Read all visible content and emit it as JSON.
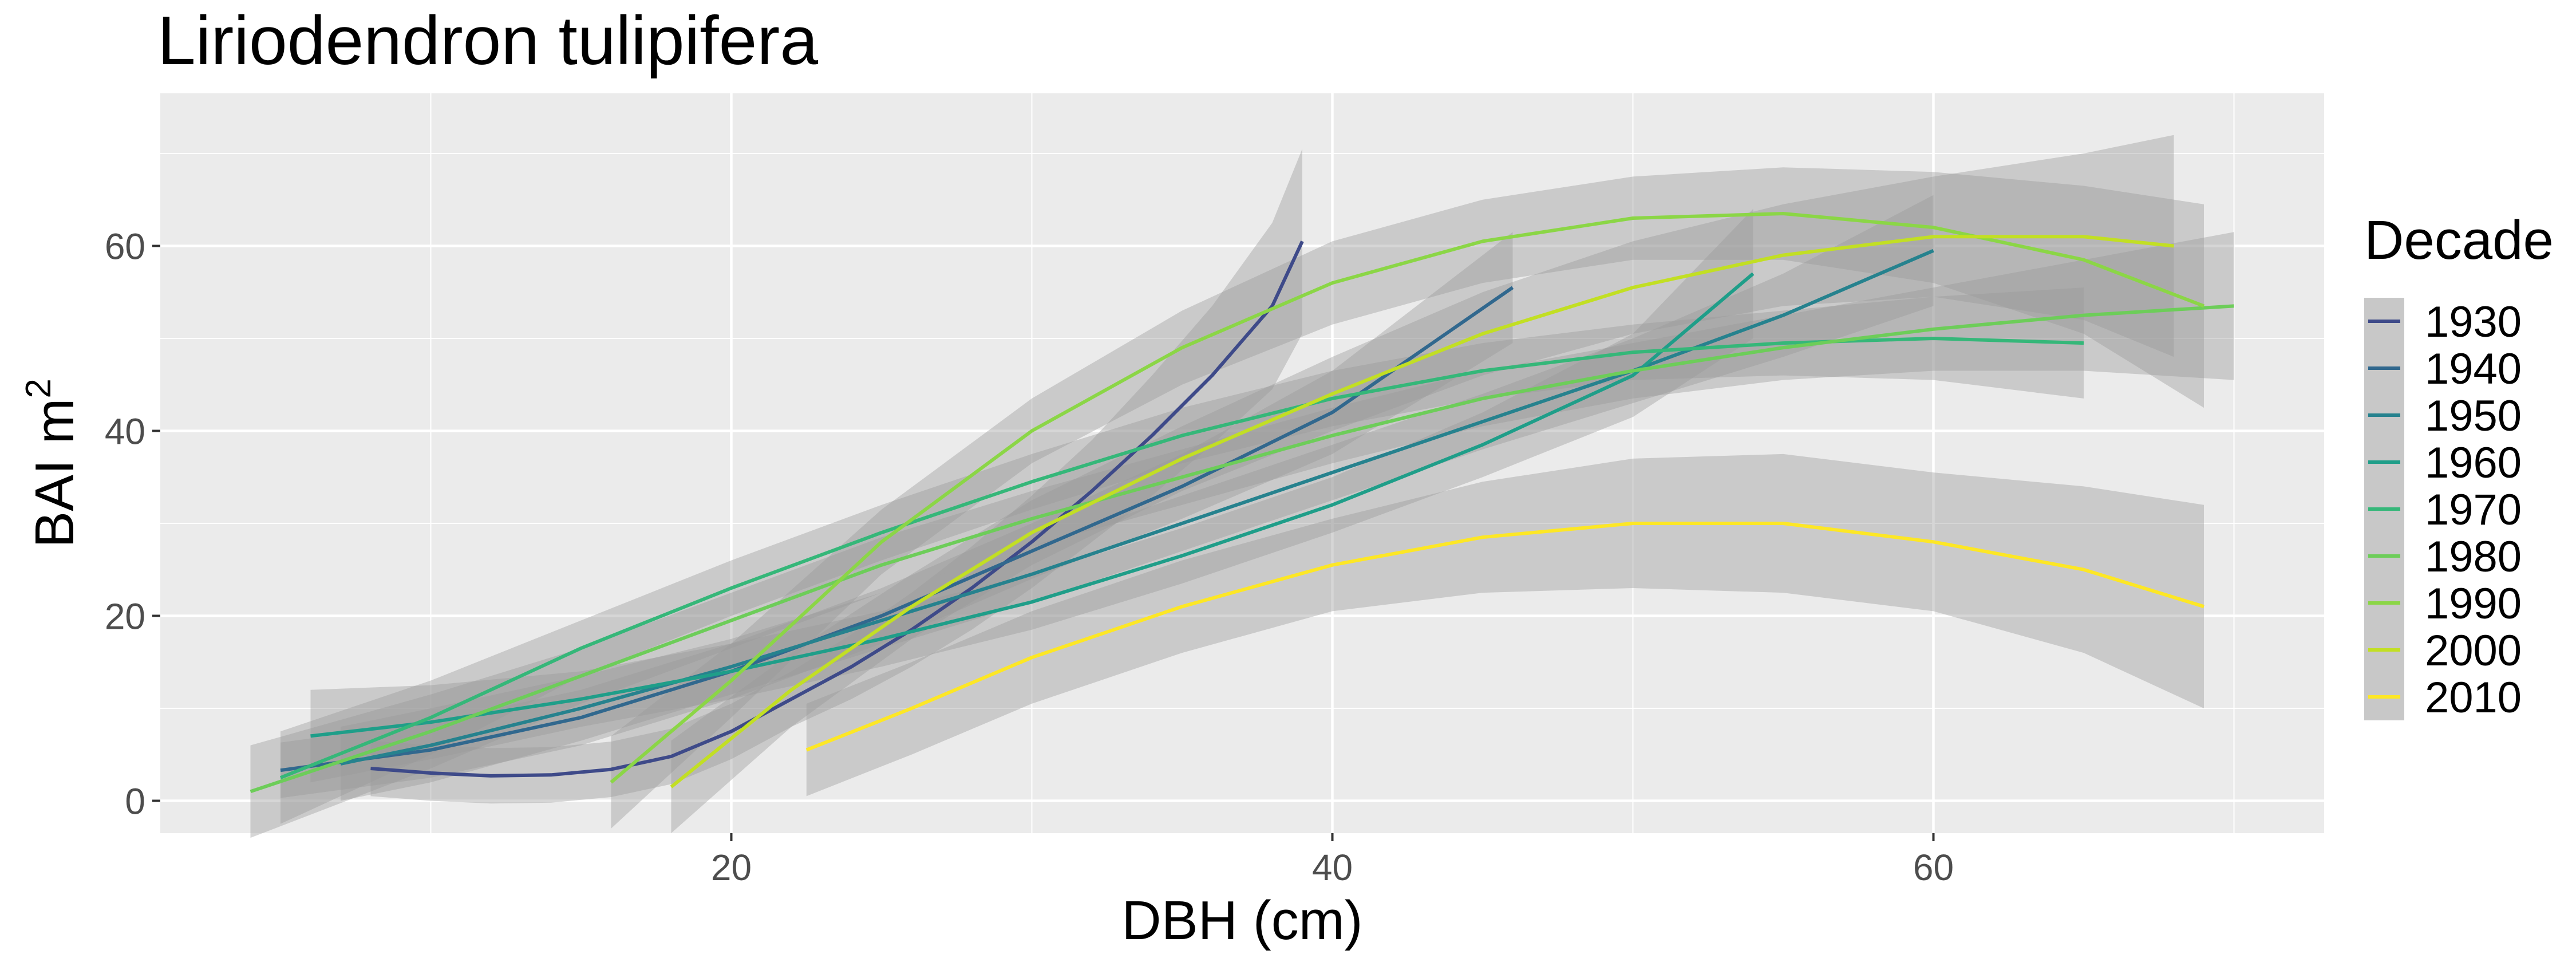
{
  "chart_data": {
    "type": "line",
    "title": "Liriodendron tulipifera",
    "xlabel": "DBH (cm)",
    "ylabel": "BAI m",
    "ylabel_superscript": "2",
    "xlim": [
      1,
      73
    ],
    "ylim": [
      -3.5,
      76.5
    ],
    "x_ticks": [
      20,
      40,
      60
    ],
    "x_tick_labels": [
      "20",
      "40",
      "60"
    ],
    "y_ticks": [
      0,
      20,
      40,
      60
    ],
    "y_tick_labels": [
      "0",
      "20",
      "40",
      "60"
    ],
    "grid": true,
    "confidence_bands": true,
    "legend": {
      "title": "Decade",
      "position": "right"
    },
    "series": [
      {
        "name": "1930",
        "color": "#3E4A89",
        "x": [
          8,
          10,
          12,
          14,
          16,
          18,
          20,
          22,
          24,
          26,
          28,
          30,
          32,
          34,
          36,
          38,
          39
        ],
        "y": [
          3.5,
          3.0,
          2.7,
          2.8,
          3.4,
          4.8,
          7.5,
          11,
          14.5,
          18.5,
          23,
          28,
          33.5,
          39.5,
          46,
          53.5,
          60.5
        ],
        "band_halfwidth": [
          3,
          3,
          3,
          3,
          3,
          3,
          3,
          3,
          3.5,
          4,
          4.5,
          5,
          5.5,
          6.5,
          7.5,
          9,
          10
        ]
      },
      {
        "name": "1940",
        "color": "#31688E",
        "x": [
          5,
          10,
          15,
          20,
          25,
          30,
          35,
          40,
          46
        ],
        "y": [
          3.3,
          5.5,
          9,
          14,
          20,
          27,
          34,
          42,
          55.5
        ],
        "band_halfwidth": [
          3,
          3,
          3,
          3,
          3,
          3,
          3.5,
          4.5,
          6
        ]
      },
      {
        "name": "1950",
        "color": "#26828E",
        "x": [
          7,
          10,
          15,
          20,
          25,
          30,
          35,
          40,
          45,
          50,
          55,
          60
        ],
        "y": [
          4,
          6,
          10,
          14.5,
          19.5,
          24.5,
          30,
          35.5,
          41,
          46.5,
          52.5,
          59.5
        ],
        "band_halfwidth": [
          4,
          4,
          3.5,
          3,
          3,
          3,
          3,
          3,
          3,
          3.5,
          4.5,
          6
        ]
      },
      {
        "name": "1960",
        "color": "#1F9E89",
        "x": [
          6,
          10,
          15,
          20,
          25,
          30,
          35,
          40,
          45,
          50,
          54
        ],
        "y": [
          7,
          8.5,
          11,
          14,
          17.5,
          21.5,
          26.5,
          32,
          38.5,
          46,
          57
        ],
        "band_halfwidth": [
          5,
          4,
          3,
          3,
          3,
          3,
          3,
          3,
          3.5,
          4.5,
          7
        ]
      },
      {
        "name": "1970",
        "color": "#35B779",
        "x": [
          5,
          10,
          15,
          20,
          25,
          30,
          35,
          40,
          45,
          50,
          55,
          60,
          65
        ],
        "y": [
          2.5,
          9,
          16.5,
          23,
          29,
          34.5,
          39.5,
          43.5,
          46.5,
          48.5,
          49.5,
          50,
          49.5
        ],
        "band_halfwidth": [
          5,
          4,
          3,
          3,
          3,
          3,
          3,
          3,
          3,
          3,
          3.5,
          4.5,
          6
        ]
      },
      {
        "name": "1980",
        "color": "#6DCD59",
        "x": [
          4,
          10,
          15,
          20,
          25,
          30,
          35,
          40,
          45,
          50,
          55,
          60,
          65,
          70
        ],
        "y": [
          1,
          7.5,
          13.5,
          19.5,
          25.5,
          30.5,
          35,
          39.5,
          43.5,
          46.5,
          49,
          51,
          52.5,
          53.5
        ],
        "band_halfwidth": [
          5,
          4,
          3,
          3,
          3,
          3,
          3,
          3,
          3,
          3,
          3.5,
          4.5,
          6,
          8
        ]
      },
      {
        "name": "1990",
        "color": "#8BD646",
        "x": [
          16,
          20,
          25,
          30,
          35,
          40,
          45,
          50,
          55,
          60,
          65,
          69
        ],
        "y": [
          2,
          13,
          28,
          40,
          49,
          56,
          60.5,
          63,
          63.5,
          62,
          58.5,
          53.5
        ],
        "band_halfwidth": [
          5,
          4,
          3.5,
          3.5,
          4,
          4.5,
          4.5,
          4.5,
          5,
          6,
          8,
          11
        ]
      },
      {
        "name": "2000",
        "color": "#C2DF23",
        "x": [
          18,
          22,
          26,
          30,
          35,
          40,
          45,
          50,
          55,
          60,
          65,
          68
        ],
        "y": [
          1.5,
          12,
          21,
          29,
          37,
          44,
          50.5,
          55.5,
          59,
          61,
          61,
          60
        ],
        "band_halfwidth": [
          5,
          4,
          3.5,
          3.5,
          3.5,
          4,
          4.5,
          5,
          5.5,
          6.5,
          9,
          12
        ]
      },
      {
        "name": "2010",
        "color": "#FDE725",
        "x": [
          22.5,
          26,
          30,
          35,
          40,
          45,
          50,
          55,
          60,
          65,
          69
        ],
        "y": [
          5.5,
          10,
          15.5,
          21,
          25.5,
          28.5,
          30,
          30,
          28,
          25,
          21
        ],
        "band_halfwidth": [
          5,
          5,
          5,
          5,
          5,
          6,
          7,
          7.5,
          7.5,
          9,
          11
        ]
      }
    ]
  }
}
